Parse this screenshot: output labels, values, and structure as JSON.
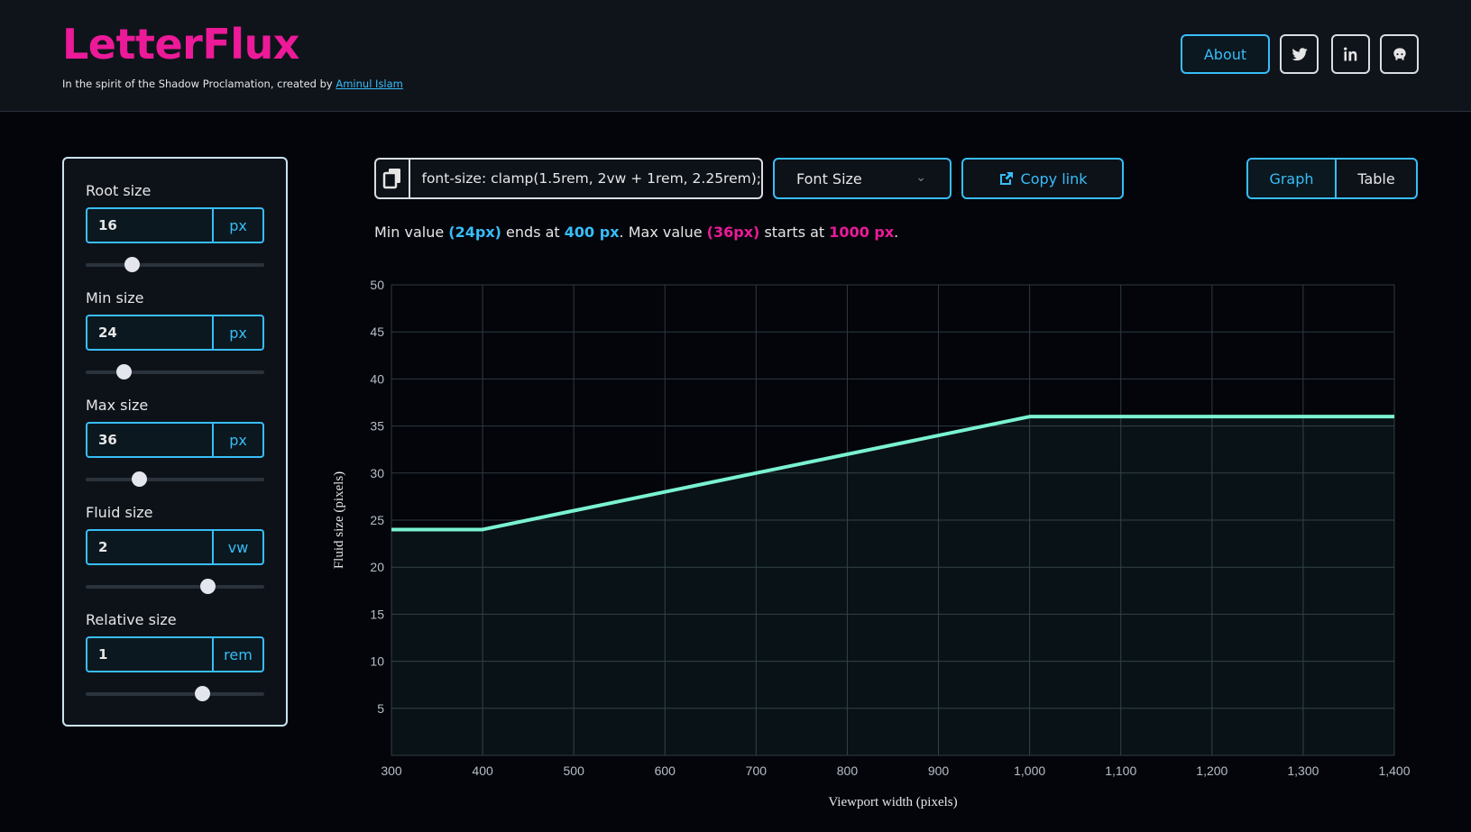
{
  "header": {
    "brand": "LetterFlux",
    "tagline_prefix": "In the spirit of the Shadow Proclamation, created by",
    "author": "Aminul Islam",
    "about_label": "About",
    "icons": [
      "twitter-icon",
      "linkedin-icon",
      "github-icon"
    ]
  },
  "panel": {
    "fields": [
      {
        "label": "Root size",
        "value": "16",
        "unit": "px",
        "slider": 0.26
      },
      {
        "label": "Min size",
        "value": "24",
        "unit": "px",
        "slider": 0.21
      },
      {
        "label": "Max size",
        "value": "36",
        "unit": "px",
        "slider": 0.3
      },
      {
        "label": "Fluid size",
        "value": "2",
        "unit": "vw",
        "slider": 0.68
      },
      {
        "label": "Relative size",
        "value": "1",
        "unit": "rem",
        "slider": 0.65
      }
    ]
  },
  "toolbar": {
    "css_code": "font-size: clamp(1.5rem, 2vw + 1rem, 2.25rem);",
    "property_select": "Font Size",
    "copy_link_label": "Copy link",
    "view_graph": "Graph",
    "view_table": "Table"
  },
  "summary": {
    "min_prefix": "Min value",
    "min_value": "(24px)",
    "ends_at_text": "ends at",
    "min_end": "400 px",
    "max_prefix": ". Max value",
    "max_value": "(36px)",
    "starts_at_text": "starts at",
    "max_start": "1000 px",
    "suffix": "."
  },
  "colors": {
    "brand": "#ec1a98",
    "accent": "#38bdf8",
    "line": "#7af2d2"
  },
  "chart_data": {
    "type": "line",
    "xlabel": "Viewport width (pixels)",
    "ylabel": "Fluid size (pixels)",
    "xlim": [
      300,
      1400
    ],
    "ylim": [
      0,
      50
    ],
    "x_ticks": [
      "300",
      "400",
      "500",
      "600",
      "700",
      "800",
      "900",
      "1,000",
      "1,100",
      "1,200",
      "1,300",
      "1,400"
    ],
    "y_ticks": [
      "5",
      "10",
      "15",
      "20",
      "25",
      "30",
      "35",
      "40",
      "45",
      "50"
    ],
    "grid": true,
    "series": [
      {
        "x": [
          300,
          400,
          1000,
          1400
        ],
        "y": [
          24,
          24,
          36,
          36
        ]
      }
    ]
  }
}
